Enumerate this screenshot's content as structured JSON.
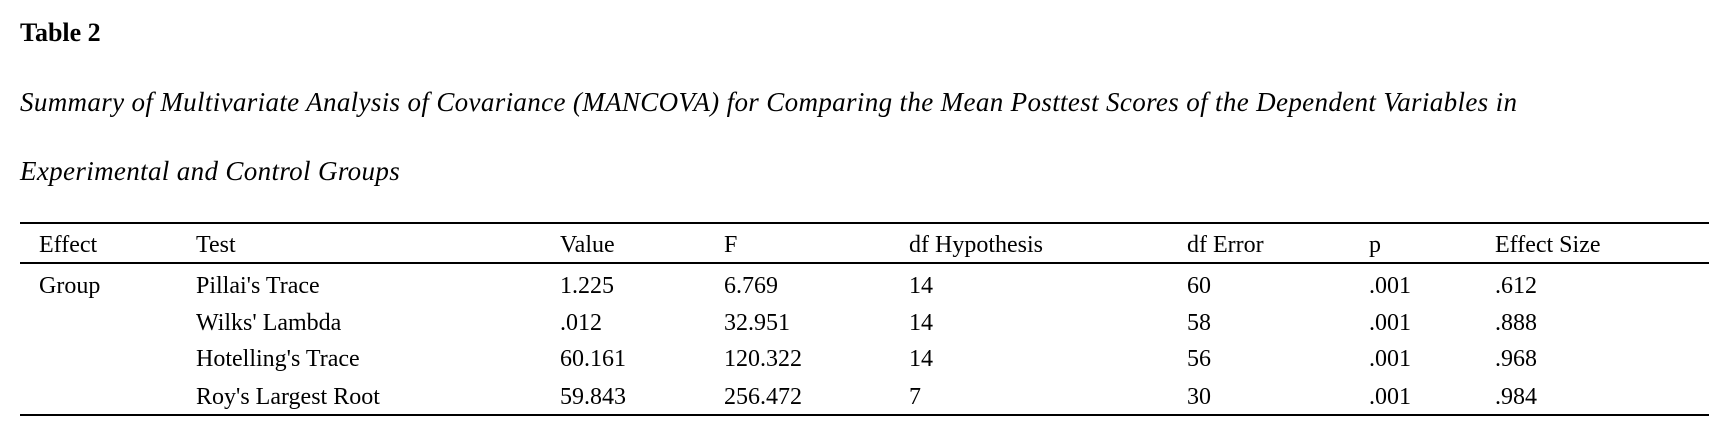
{
  "header": {
    "title": "Table 2",
    "caption": [
      "Summary of Multivariate Analysis of Covariance (MANCOVA) for Comparing the Mean Posttest Scores of the Dependent Variables in",
      "Experimental and Control Groups"
    ]
  },
  "table": {
    "columns": [
      "Effect",
      "Test",
      "Value",
      "F",
      "df Hypothesis",
      "df Error",
      "p",
      "Effect Size"
    ],
    "effect": "Group",
    "rows": [
      [
        "Pillai's Trace",
        "1.225",
        "6.769",
        "14",
        "60",
        ".001",
        ".612"
      ],
      [
        "Wilks' Lambda",
        ".012",
        "32.951",
        "14",
        "58",
        ".001",
        ".888"
      ],
      [
        "Hotelling's Trace",
        "60.161",
        "120.322",
        "14",
        "56",
        ".001",
        ".968"
      ],
      [
        "Roy's Largest Root",
        "59.843",
        "256.472",
        "7",
        "30",
        ".001",
        ".984"
      ]
    ]
  }
}
